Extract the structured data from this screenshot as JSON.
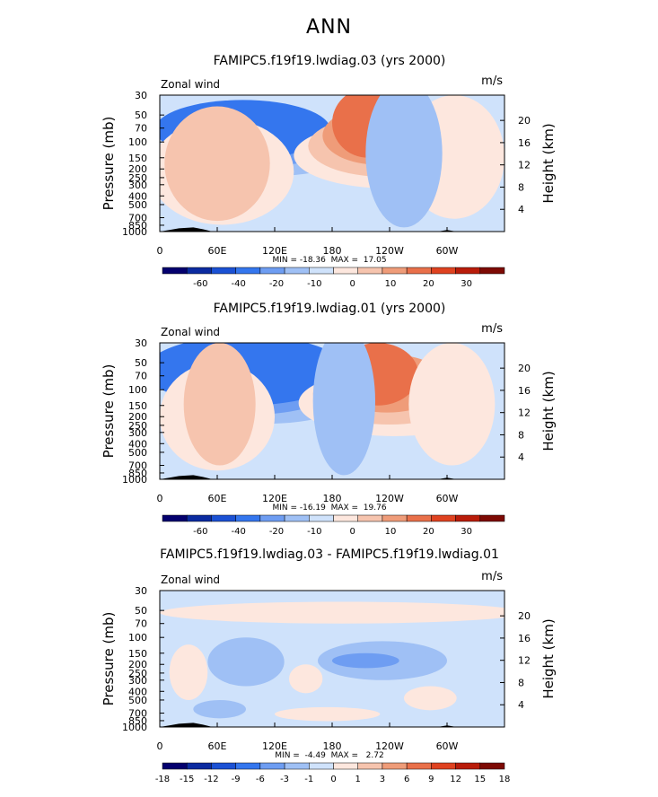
{
  "page_title": "ANN",
  "chart_data": [
    {
      "type": "heatmap",
      "title": "FAMIPC5.f19f19.lwdiag.03 (yrs 2000)",
      "variable": "Zonal wind",
      "units": "m/s",
      "xlabel": "",
      "ylabel": "Pressure (mb)",
      "y2label": "Height (km)",
      "x_ticks": [
        "0",
        "60E",
        "120E",
        "180",
        "120W",
        "60W"
      ],
      "x_tick_values": [
        0,
        60,
        120,
        180,
        240,
        300
      ],
      "xlim": [
        0,
        360
      ],
      "y_ticks": [
        "30",
        "50",
        "70",
        "100",
        "150",
        "200",
        "250",
        "300",
        "400",
        "500",
        "700",
        "850",
        "1000"
      ],
      "y_tick_values": [
        30,
        50,
        70,
        100,
        150,
        200,
        250,
        300,
        400,
        500,
        700,
        850,
        1000
      ],
      "ylim": [
        1000,
        30
      ],
      "height_ticks": [
        "20",
        "16",
        "12",
        "8",
        "4"
      ],
      "height_tick_values": [
        20,
        16,
        12,
        8,
        4
      ],
      "min_max_label": "MIN = -18.36  MAX =  17.05",
      "min": -18.36,
      "max": 17.05,
      "colorbar_labels": [
        "-60",
        "-40",
        "-20",
        "-10",
        "0",
        "10",
        "20",
        "30"
      ],
      "features": [
        {
          "lon": 90,
          "p": 150,
          "sign": "neg",
          "levels": [
            [
              70,
              120,
              55,
              240
            ],
            [
              82,
              100,
              45,
              190
            ],
            [
              95,
              88,
              34,
              155
            ]
          ]
        },
        {
          "lon": 215,
          "p": 150,
          "sign": "pos",
          "levels": [
            [
              75,
              125,
              60,
              330
            ],
            [
              60,
              100,
              50,
              245
            ],
            [
              45,
              72,
              40,
              180
            ],
            [
              35,
              40,
              25,
              150
            ]
          ]
        },
        {
          "lon": 60,
          "p": 700,
          "sign": "pos",
          "levels": [
            [
              70,
              80,
              55,
              840
            ],
            [
              55,
              55,
              40,
              760
            ]
          ]
        },
        {
          "lon": 300,
          "p": 600,
          "sign": "pos",
          "levels": [
            [
              45,
              60,
              30,
              720
            ]
          ]
        },
        {
          "lon": 255,
          "p": 800,
          "sign": "neg",
          "levels": [
            [
              40,
              40,
              20,
              900
            ]
          ]
        }
      ],
      "topography": [
        [
          0,
          1000
        ],
        [
          10,
          960
        ],
        [
          20,
          920
        ],
        [
          35,
          900
        ],
        [
          45,
          940
        ],
        [
          55,
          1000
        ],
        [
          290,
          1000
        ],
        [
          300,
          960
        ],
        [
          310,
          1000
        ]
      ]
    },
    {
      "type": "heatmap",
      "title": "FAMIPC5.f19f19.lwdiag.01 (yrs 2000)",
      "variable": "Zonal wind",
      "units": "m/s",
      "xlabel": "",
      "ylabel": "Pressure (mb)",
      "y2label": "Height (km)",
      "x_ticks": [
        "0",
        "60E",
        "120E",
        "180",
        "120W",
        "60W"
      ],
      "x_tick_values": [
        0,
        60,
        120,
        180,
        240,
        300
      ],
      "xlim": [
        0,
        360
      ],
      "y_ticks": [
        "30",
        "50",
        "70",
        "100",
        "150",
        "200",
        "250",
        "300",
        "400",
        "500",
        "700",
        "850",
        "1000"
      ],
      "y_tick_values": [
        30,
        50,
        70,
        100,
        150,
        200,
        250,
        300,
        400,
        500,
        700,
        850,
        1000
      ],
      "ylim": [
        1000,
        30
      ],
      "height_ticks": [
        "20",
        "16",
        "12",
        "8",
        "4"
      ],
      "height_tick_values": [
        20,
        16,
        12,
        8,
        4
      ],
      "min_max_label": "MIN = -16.19  MAX =  19.76",
      "min": -16.19,
      "max": 19.76,
      "colorbar_labels": [
        "-60",
        "-40",
        "-20",
        "-10",
        "0",
        "10",
        "20",
        "30"
      ],
      "features": [
        {
          "lon": 85,
          "p": 150,
          "sign": "neg",
          "levels": [
            [
              70,
              120,
              55,
              240
            ],
            [
              80,
              100,
              45,
              190
            ],
            [
              100,
              110,
              25,
              150
            ]
          ]
        },
        {
          "lon": 220,
          "p": 150,
          "sign": "pos",
          "levels": [
            [
              75,
              125,
              60,
              330
            ],
            [
              60,
              100,
              50,
              245
            ],
            [
              45,
              80,
              40,
              180
            ],
            [
              35,
              50,
              30,
              150
            ]
          ]
        },
        {
          "lon": 60,
          "p": 700,
          "sign": "pos",
          "levels": [
            [
              60,
              60,
              50,
              800
            ],
            [
              35,
              40,
              30,
              700
            ]
          ]
        },
        {
          "lon": 300,
          "p": 600,
          "sign": "pos",
          "levels": [
            [
              40,
              50,
              30,
              700
            ]
          ]
        },
        {
          "lon": 195,
          "p": 850,
          "sign": "neg",
          "levels": [
            [
              35,
              30,
              20,
              900
            ]
          ]
        }
      ],
      "topography": [
        [
          0,
          1000
        ],
        [
          10,
          960
        ],
        [
          20,
          920
        ],
        [
          35,
          900
        ],
        [
          45,
          940
        ],
        [
          55,
          1000
        ],
        [
          290,
          1000
        ],
        [
          300,
          960
        ],
        [
          310,
          1000
        ]
      ]
    },
    {
      "type": "heatmap",
      "title": "FAMIPC5.f19f19.lwdiag.03 - FAMIPC5.f19f19.lwdiag.01",
      "variable": "Zonal wind",
      "units": "m/s",
      "xlabel": "",
      "ylabel": "Pressure (mb)",
      "y2label": "Height (km)",
      "x_ticks": [
        "0",
        "60E",
        "120E",
        "180",
        "120W",
        "60W"
      ],
      "x_tick_values": [
        0,
        60,
        120,
        180,
        240,
        300
      ],
      "xlim": [
        0,
        360
      ],
      "y_ticks": [
        "30",
        "50",
        "70",
        "100",
        "150",
        "200",
        "250",
        "300",
        "400",
        "500",
        "700",
        "850",
        "1000"
      ],
      "y_tick_values": [
        30,
        50,
        70,
        100,
        150,
        200,
        250,
        300,
        400,
        500,
        700,
        850,
        1000
      ],
      "ylim": [
        1000,
        30
      ],
      "height_ticks": [
        "20",
        "16",
        "12",
        "8",
        "4"
      ],
      "height_tick_values": [
        20,
        16,
        12,
        8,
        4
      ],
      "min_max_label": "MIN =  -4.49  MAX =   2.72",
      "min": -4.49,
      "max": 2.72,
      "colorbar_labels": [
        "-18",
        "-15",
        "-12",
        "-9",
        "-6",
        "-3",
        "-1",
        "0",
        "1",
        "3",
        "6",
        "9",
        "12",
        "15",
        "18"
      ],
      "features": [
        {
          "lon": 180,
          "p": 55,
          "sign": "pos",
          "levels": [
            [
              180,
              200,
              40,
              70
            ]
          ]
        },
        {
          "lon": 90,
          "p": 180,
          "sign": "neg",
          "levels": [
            [
              40,
              40,
              100,
              350
            ]
          ]
        },
        {
          "lon": 220,
          "p": 180,
          "sign": "neg",
          "levels": [
            [
              55,
              80,
              110,
              300
            ],
            [
              40,
              30,
              150,
              220
            ]
          ]
        },
        {
          "lon": 262,
          "p": 150,
          "sign": "neg",
          "levels": [
            [
              10,
              15,
              120,
              190
            ]
          ]
        },
        {
          "lon": 30,
          "p": 250,
          "sign": "pos",
          "levels": [
            [
              20,
              20,
              120,
              500
            ]
          ]
        },
        {
          "lon": 150,
          "p": 300,
          "sign": "pos",
          "levels": [
            [
              15,
              20,
              200,
              420
            ]
          ]
        },
        {
          "lon": 280,
          "p": 450,
          "sign": "pos",
          "levels": [
            [
              25,
              30,
              350,
              650
            ]
          ]
        },
        {
          "lon": 170,
          "p": 700,
          "sign": "pos",
          "levels": [
            [
              50,
              60,
              600,
              860
            ]
          ]
        },
        {
          "lon": 60,
          "p": 650,
          "sign": "neg",
          "levels": [
            [
              25,
              30,
              500,
              800
            ]
          ]
        }
      ],
      "topography": [
        [
          0,
          1000
        ],
        [
          10,
          960
        ],
        [
          20,
          920
        ],
        [
          35,
          900
        ],
        [
          45,
          940
        ],
        [
          55,
          1000
        ],
        [
          290,
          1000
        ],
        [
          300,
          960
        ],
        [
          310,
          1000
        ]
      ]
    }
  ],
  "colors": {
    "colorbar": [
      "#04006e",
      "#0b2ba0",
      "#1b51d4",
      "#3476ee",
      "#6e9df2",
      "#9fc0f5",
      "#cfe2fb",
      "#fde7de",
      "#f6c4ae",
      "#ef9c79",
      "#e9704a",
      "#df4220",
      "#b91c0a",
      "#7d0a04"
    ],
    "colorbar_diff": [
      "#04006e",
      "#0b2ba0",
      "#1b51d4",
      "#3476ee",
      "#6e9df2",
      "#9fc0f5",
      "#cfe2fb",
      "#fde7de",
      "#f6c4ae",
      "#ef9c79",
      "#e9704a",
      "#df4220",
      "#b91c0a",
      "#7d0a04"
    ],
    "field_bg": "#cfe2fb",
    "neg_levels": [
      "#9fc0f5",
      "#6e9df2",
      "#3476ee"
    ],
    "pos_levels": [
      "#fde7de",
      "#f6c4ae",
      "#ef9c79",
      "#e9704a"
    ]
  }
}
